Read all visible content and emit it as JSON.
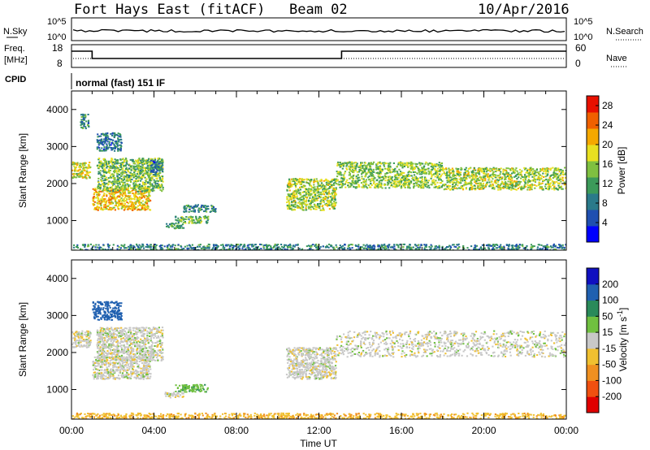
{
  "header": {
    "station": "Fort Hays East (fitACF)",
    "beam": "Beam 02",
    "date": "10/Apr/2016"
  },
  "top_panels": {
    "noise": {
      "left_label": "N.Sky",
      "right_label": "N.Search",
      "left_ticks": [
        "10^5",
        "10^0"
      ],
      "right_ticks": [
        "10^5",
        "10^0"
      ]
    },
    "freq": {
      "left_label_1": "Freq.",
      "left_label_2": "[MHz]",
      "left_ticks": [
        "18",
        "8"
      ],
      "right_label": "Nave",
      "right_ticks": [
        "60",
        "0"
      ]
    },
    "cpid_label": "CPID",
    "cpid_text": "normal (fast) 151 IF"
  },
  "chart_data": [
    {
      "type": "heatmap",
      "title": "",
      "ylabel": "Slant Range [km]",
      "xlabel": "",
      "x_ticks": [
        "00:00",
        "04:00",
        "08:00",
        "12:00",
        "16:00",
        "20:00",
        "00:00"
      ],
      "y_ticks": [
        1000,
        2000,
        3000,
        4000
      ],
      "ylim": [
        200,
        4500
      ],
      "xlim_hours": [
        0,
        24
      ],
      "colorbar": {
        "label": "Power [dB]",
        "ticks": [
          4,
          8,
          12,
          16,
          20,
          24,
          28
        ],
        "range": [
          0,
          30
        ],
        "colors": [
          "#0000ff",
          "#1f4fb0",
          "#2a7a8a",
          "#3c9a5a",
          "#7fc040",
          "#e8e020",
          "#f5a800",
          "#f06000",
          "#e81000"
        ]
      },
      "echo_regions": [
        {
          "t": [
            0.0,
            0.9
          ],
          "r": [
            2150,
            2600
          ],
          "power": 18
        },
        {
          "t": [
            0.4,
            0.8
          ],
          "r": [
            3500,
            3900
          ],
          "power": 10
        },
        {
          "t": [
            1.0,
            3.8
          ],
          "r": [
            1300,
            1900
          ],
          "power": 20
        },
        {
          "t": [
            1.2,
            4.4
          ],
          "r": [
            1800,
            2700
          ],
          "power": 14
        },
        {
          "t": [
            1.2,
            2.4
          ],
          "r": [
            2900,
            3400
          ],
          "power": 8
        },
        {
          "t": [
            3.8,
            4.4
          ],
          "r": [
            2300,
            2650
          ],
          "power": 8
        },
        {
          "t": [
            4.5,
            5.4
          ],
          "r": [
            800,
            950
          ],
          "power": 12
        },
        {
          "t": [
            5.0,
            6.6
          ],
          "r": [
            950,
            1150
          ],
          "power": 14
        },
        {
          "t": [
            5.4,
            7.0
          ],
          "r": [
            1250,
            1450
          ],
          "power": 10
        },
        {
          "t": [
            10.4,
            12.8
          ],
          "r": [
            1300,
            2150
          ],
          "power": 16
        },
        {
          "t": [
            12.8,
            18.0
          ],
          "r": [
            1900,
            2600
          ],
          "power": 15
        },
        {
          "t": [
            18.0,
            24.0
          ],
          "r": [
            1850,
            2450
          ],
          "power": 16
        },
        {
          "t": [
            0.0,
            24.0
          ],
          "r": [
            200,
            380
          ],
          "power": 9
        }
      ]
    },
    {
      "type": "heatmap",
      "title": "",
      "ylabel": "Slant Range [km]",
      "xlabel": "Time UT",
      "x_ticks": [
        "00:00",
        "04:00",
        "08:00",
        "12:00",
        "16:00",
        "20:00",
        "00:00"
      ],
      "y_ticks": [
        1000,
        2000,
        3000,
        4000
      ],
      "ylim": [
        200,
        4500
      ],
      "xlim_hours": [
        0,
        24
      ],
      "colorbar": {
        "label": "Velocity [m s^-1]",
        "ticks": [
          200,
          100,
          50,
          15,
          -15,
          -50,
          -100,
          -200
        ],
        "colors": [
          "#1010c0",
          "#2060b0",
          "#2a8a5a",
          "#70c040",
          "#c8c8c8",
          "#f0c030",
          "#f09020",
          "#f05010",
          "#e00000"
        ]
      },
      "echo_regions": [
        {
          "t": [
            0.0,
            0.9
          ],
          "r": [
            2150,
            2600
          ],
          "vel": 0
        },
        {
          "t": [
            1.0,
            3.8
          ],
          "r": [
            1300,
            1900
          ],
          "vel": 0
        },
        {
          "t": [
            1.2,
            4.4
          ],
          "r": [
            1800,
            2700
          ],
          "vel": 0
        },
        {
          "t": [
            1.0,
            2.4
          ],
          "r": [
            2900,
            3400
          ],
          "vel": 150
        },
        {
          "t": [
            4.5,
            5.4
          ],
          "r": [
            800,
            950
          ],
          "vel": 0
        },
        {
          "t": [
            5.0,
            6.6
          ],
          "r": [
            950,
            1150
          ],
          "vel": 40
        },
        {
          "t": [
            10.4,
            12.8
          ],
          "r": [
            1300,
            2150
          ],
          "vel": 0
        },
        {
          "t": [
            12.8,
            24.0
          ],
          "r": [
            1900,
            2600
          ],
          "vel": 0
        },
        {
          "t": [
            0.0,
            24.0
          ],
          "r": [
            200,
            380
          ],
          "vel": -40
        }
      ]
    }
  ]
}
